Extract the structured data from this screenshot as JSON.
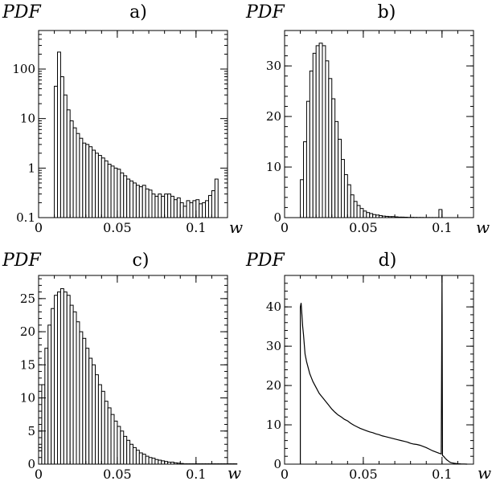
{
  "chart_data": [
    {
      "panel": "a)",
      "type": "bar",
      "ylabel": "PDF",
      "xlabel": "w",
      "yscale": "log",
      "xlim": [
        0,
        0.12
      ],
      "ylim": [
        0.1,
        600
      ],
      "xticks": [
        0,
        0.05,
        0.1
      ],
      "xtick_labels": [
        "0",
        "0.05",
        "0.1"
      ],
      "yticks": [
        0.1,
        1,
        10,
        100
      ],
      "ytick_labels": [
        "0.1",
        "1",
        "10",
        "100"
      ],
      "bin_start": 0.01,
      "bin_width": 0.002,
      "values": [
        45,
        220,
        70,
        30,
        15,
        9,
        6.5,
        5,
        4,
        3.2,
        3,
        2.7,
        2.3,
        2,
        1.8,
        1.6,
        1.4,
        1.2,
        1.1,
        1,
        0.95,
        0.8,
        0.7,
        0.6,
        0.55,
        0.5,
        0.45,
        0.42,
        0.45,
        0.38,
        0.36,
        0.3,
        0.27,
        0.3,
        0.27,
        0.3,
        0.3,
        0.27,
        0.23,
        0.25,
        0.2,
        0.17,
        0.22,
        0.2,
        0.22,
        0.23,
        0.19,
        0.2,
        0.22,
        0.28,
        0.35,
        0.6
      ]
    },
    {
      "panel": "b)",
      "type": "bar",
      "ylabel": "PDF",
      "xlabel": "w",
      "xlim": [
        0,
        0.12
      ],
      "ylim": [
        0,
        37
      ],
      "xticks": [
        0,
        0.05,
        0.1
      ],
      "xtick_labels": [
        "0",
        "0.05",
        "0.1"
      ],
      "yticks": [
        0,
        10,
        20,
        30
      ],
      "ytick_labels": [
        "0",
        "10",
        "20",
        "30"
      ],
      "bin_start": 0.01,
      "bin_width": 0.002,
      "values": [
        7.5,
        15,
        23,
        29,
        32.5,
        34,
        34.5,
        34,
        31,
        27.5,
        23.5,
        19,
        15.5,
        11.5,
        8.5,
        6.5,
        4.5,
        3.2,
        2.4,
        1.8,
        1.3,
        1.0,
        0.8,
        0.6,
        0.5,
        0.4,
        0.3,
        0.25,
        0.2,
        0.2,
        0.15,
        0.1,
        0.1,
        0.08,
        0.05,
        0.05,
        0.04,
        0.03,
        0.03,
        0.02,
        0.02,
        0.02,
        0.02,
        0.02,
        1.6
      ]
    },
    {
      "panel": "c)",
      "type": "bar",
      "ylabel": "PDF",
      "xlabel": "w",
      "xlim": [
        0,
        0.12
      ],
      "ylim": [
        0,
        28.5
      ],
      "xticks": [
        0,
        0.05,
        0.1
      ],
      "xtick_labels": [
        "0",
        "0.05",
        "0.1"
      ],
      "yticks": [
        0,
        5,
        10,
        15,
        20,
        25
      ],
      "ytick_labels": [
        "0",
        "5",
        "10",
        "15",
        "20",
        "25"
      ],
      "bin_start": 0,
      "bin_width": 0.002,
      "values": [
        2.5,
        12,
        17.5,
        21,
        23.5,
        25.5,
        26,
        26.5,
        26,
        25.5,
        24,
        23,
        21.5,
        20,
        19,
        17.5,
        16,
        15,
        13.5,
        12,
        11,
        9.5,
        8.5,
        7.5,
        6.5,
        5.7,
        5,
        4.2,
        3.6,
        3,
        2.5,
        2.1,
        1.7,
        1.5,
        1.2,
        1,
        0.9,
        0.7,
        0.6,
        0.5,
        0.4,
        0.3,
        0.3,
        0.2,
        0.15,
        0.1,
        0.05,
        0.05,
        0.05,
        0.05,
        0.05,
        0.05,
        0.05,
        0.05,
        0.05,
        0.05,
        0.05,
        0.05,
        0.05,
        0.05,
        0.05,
        0.05,
        0.05
      ]
    },
    {
      "panel": "d)",
      "type": "line",
      "ylabel": "PDF",
      "xlabel": "w",
      "xlim": [
        0,
        0.12
      ],
      "ylim": [
        0,
        48
      ],
      "xticks": [
        0,
        0.05,
        0.1
      ],
      "xtick_labels": [
        "0",
        "0.05",
        "0.1"
      ],
      "yticks": [
        0,
        10,
        20,
        30,
        40
      ],
      "ytick_labels": [
        "0",
        "10",
        "20",
        "30",
        "40"
      ],
      "points": [
        [
          0.01,
          0
        ],
        [
          0.01,
          40
        ],
        [
          0.0105,
          41
        ],
        [
          0.011,
          38
        ],
        [
          0.0115,
          35
        ],
        [
          0.012,
          33
        ],
        [
          0.0125,
          30.5
        ],
        [
          0.013,
          28
        ],
        [
          0.014,
          26
        ],
        [
          0.015,
          24.5
        ],
        [
          0.016,
          23
        ],
        [
          0.017,
          22
        ],
        [
          0.018,
          21
        ],
        [
          0.02,
          19.5
        ],
        [
          0.022,
          18
        ],
        [
          0.024,
          17
        ],
        [
          0.026,
          16
        ],
        [
          0.028,
          15
        ],
        [
          0.03,
          14
        ],
        [
          0.032,
          13.2
        ],
        [
          0.034,
          12.5
        ],
        [
          0.036,
          12
        ],
        [
          0.038,
          11.4
        ],
        [
          0.04,
          11
        ],
        [
          0.042,
          10.4
        ],
        [
          0.044,
          9.9
        ],
        [
          0.046,
          9.5
        ],
        [
          0.048,
          9.1
        ],
        [
          0.05,
          8.8
        ],
        [
          0.052,
          8.5
        ],
        [
          0.054,
          8.2
        ],
        [
          0.056,
          8
        ],
        [
          0.058,
          7.7
        ],
        [
          0.06,
          7.5
        ],
        [
          0.062,
          7.2
        ],
        [
          0.064,
          7
        ],
        [
          0.066,
          6.8
        ],
        [
          0.068,
          6.6
        ],
        [
          0.07,
          6.4
        ],
        [
          0.072,
          6.2
        ],
        [
          0.074,
          6
        ],
        [
          0.076,
          5.8
        ],
        [
          0.078,
          5.6
        ],
        [
          0.08,
          5.3
        ],
        [
          0.082,
          5.1
        ],
        [
          0.084,
          5
        ],
        [
          0.086,
          4.8
        ],
        [
          0.088,
          4.5
        ],
        [
          0.09,
          4.2
        ],
        [
          0.092,
          3.8
        ],
        [
          0.094,
          3.4
        ],
        [
          0.096,
          3.1
        ],
        [
          0.098,
          2.8
        ],
        [
          0.0995,
          2.6
        ],
        [
          0.1,
          48
        ],
        [
          0.1003,
          2.2
        ],
        [
          0.101,
          2
        ],
        [
          0.102,
          1.5
        ],
        [
          0.103,
          1.1
        ],
        [
          0.104,
          0.8
        ],
        [
          0.105,
          0.5
        ],
        [
          0.106,
          0.35
        ],
        [
          0.108,
          0.2
        ],
        [
          0.11,
          0.1
        ],
        [
          0.112,
          0.05
        ],
        [
          0.114,
          0.02
        ],
        [
          0.116,
          0
        ]
      ]
    }
  ]
}
